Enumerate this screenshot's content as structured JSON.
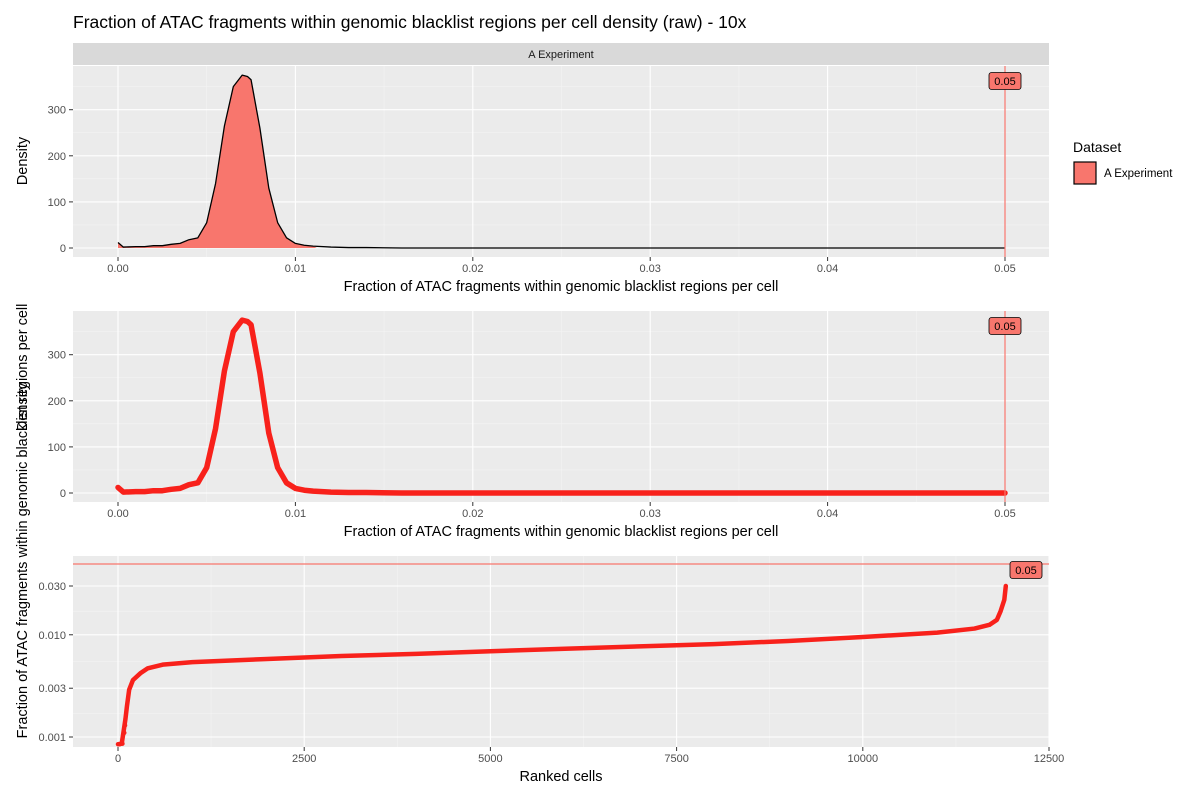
{
  "title": "Fraction of ATAC fragments within genomic blacklist regions per cell density (raw) - 10x",
  "colors": {
    "fill": "#F8766D",
    "line": "#F8211B",
    "vline": "#F8766D",
    "panel_bg": "#EBEBEB",
    "strip_bg": "#D9D9D9",
    "grid_major": "#FFFFFF"
  },
  "legend": {
    "title": "Dataset",
    "entries": [
      "A Experiment"
    ]
  },
  "chart_data": [
    {
      "type": "area",
      "facet_label": "A Experiment",
      "xlabel": "Fraction of ATAC fragments within genomic blacklist regions per cell",
      "ylabel": "Density",
      "xlim": [
        0,
        0.05
      ],
      "ylim": [
        0,
        375
      ],
      "x_ticks": [
        "0.00",
        "0.01",
        "0.02",
        "0.03",
        "0.04",
        "0.05"
      ],
      "y_ticks": [
        "0",
        "100",
        "200",
        "300"
      ],
      "threshold": 0.05,
      "threshold_label": "0.05",
      "series": [
        {
          "name": "A Experiment",
          "x": [
            0.0,
            0.0003,
            0.001,
            0.0015,
            0.002,
            0.0025,
            0.003,
            0.0035,
            0.004,
            0.0045,
            0.005,
            0.0055,
            0.006,
            0.0065,
            0.007,
            0.0073,
            0.0075,
            0.008,
            0.0085,
            0.009,
            0.0095,
            0.01,
            0.0105,
            0.011,
            0.012,
            0.013,
            0.014,
            0.016,
            0.02,
            0.025,
            0.03,
            0.035,
            0.04,
            0.045,
            0.05
          ],
          "y": [
            12,
            2,
            3,
            3,
            5,
            5,
            8,
            10,
            18,
            22,
            55,
            140,
            265,
            350,
            375,
            372,
            365,
            260,
            130,
            55,
            22,
            10,
            6,
            4,
            2,
            1,
            1,
            0,
            0,
            0,
            0,
            0,
            0,
            0,
            0
          ]
        }
      ]
    },
    {
      "type": "line",
      "xlabel": "Fraction of ATAC fragments within genomic blacklist regions per cell",
      "ylabel": "Density",
      "xlim": [
        0,
        0.05
      ],
      "ylim": [
        0,
        375
      ],
      "x_ticks": [
        "0.00",
        "0.01",
        "0.02",
        "0.03",
        "0.04",
        "0.05"
      ],
      "y_ticks": [
        "0",
        "100",
        "200",
        "300"
      ],
      "threshold": 0.05,
      "threshold_label": "0.05",
      "series": [
        {
          "x": [
            0.0,
            0.0003,
            0.001,
            0.0015,
            0.002,
            0.0025,
            0.003,
            0.0035,
            0.004,
            0.0045,
            0.005,
            0.0055,
            0.006,
            0.0065,
            0.007,
            0.0073,
            0.0075,
            0.008,
            0.0085,
            0.009,
            0.0095,
            0.01,
            0.0105,
            0.011,
            0.012,
            0.013,
            0.014,
            0.016,
            0.02,
            0.025,
            0.03,
            0.035,
            0.04,
            0.045,
            0.05
          ],
          "y": [
            12,
            2,
            3,
            3,
            5,
            5,
            8,
            10,
            18,
            22,
            55,
            140,
            265,
            350,
            375,
            372,
            365,
            260,
            130,
            55,
            22,
            10,
            6,
            4,
            2,
            1,
            1,
            0,
            0,
            0,
            0,
            0,
            0,
            0,
            0
          ]
        }
      ]
    },
    {
      "type": "scatter",
      "xlabel": "Ranked cells",
      "ylabel": "Fraction of ATAC fragments within genomic blacklist regions per cell",
      "y_scale": "log10",
      "xlim": [
        0,
        12500
      ],
      "ylim": [
        0.00085,
        0.05
      ],
      "x_ticks": [
        "0",
        "2500",
        "5000",
        "7500",
        "10000",
        "12500"
      ],
      "y_ticks": [
        "0.001",
        "0.003",
        "0.010",
        "0.030"
      ],
      "threshold": 0.05,
      "threshold_label": "0.05",
      "series": [
        {
          "x": [
            0,
            50,
            100,
            120,
            150,
            200,
            300,
            400,
            600,
            1000,
            2000,
            3000,
            4000,
            5000,
            6000,
            7000,
            8000,
            9000,
            10000,
            11000,
            11500,
            11700,
            11800,
            11850,
            11900,
            11920
          ],
          "y": [
            0.00085,
            0.00086,
            0.0015,
            0.002,
            0.0029,
            0.0036,
            0.0042,
            0.0047,
            0.0051,
            0.0054,
            0.0058,
            0.0062,
            0.0065,
            0.0069,
            0.0073,
            0.0077,
            0.0081,
            0.0087,
            0.0095,
            0.0105,
            0.0115,
            0.0125,
            0.014,
            0.017,
            0.022,
            0.03
          ]
        }
      ]
    }
  ]
}
